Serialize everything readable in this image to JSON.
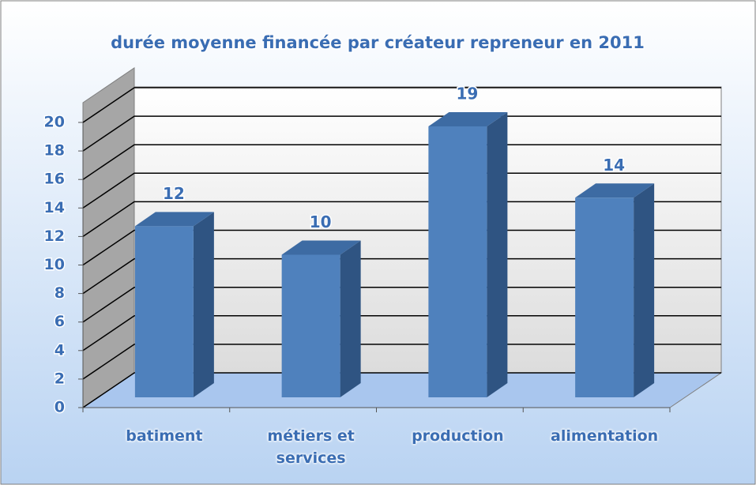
{
  "chart_data": {
    "type": "bar3d",
    "title": "durée moyenne financée par créateur repreneur en 2011",
    "categories": [
      "batiment",
      "métiers et services",
      "production",
      "alimentation"
    ],
    "values": [
      12,
      10,
      19,
      14
    ],
    "color": "#4f81bd",
    "ylim": [
      0,
      20
    ],
    "yticks": [
      0,
      2,
      4,
      6,
      8,
      10,
      12,
      14,
      16,
      18,
      20
    ],
    "grid": true
  }
}
